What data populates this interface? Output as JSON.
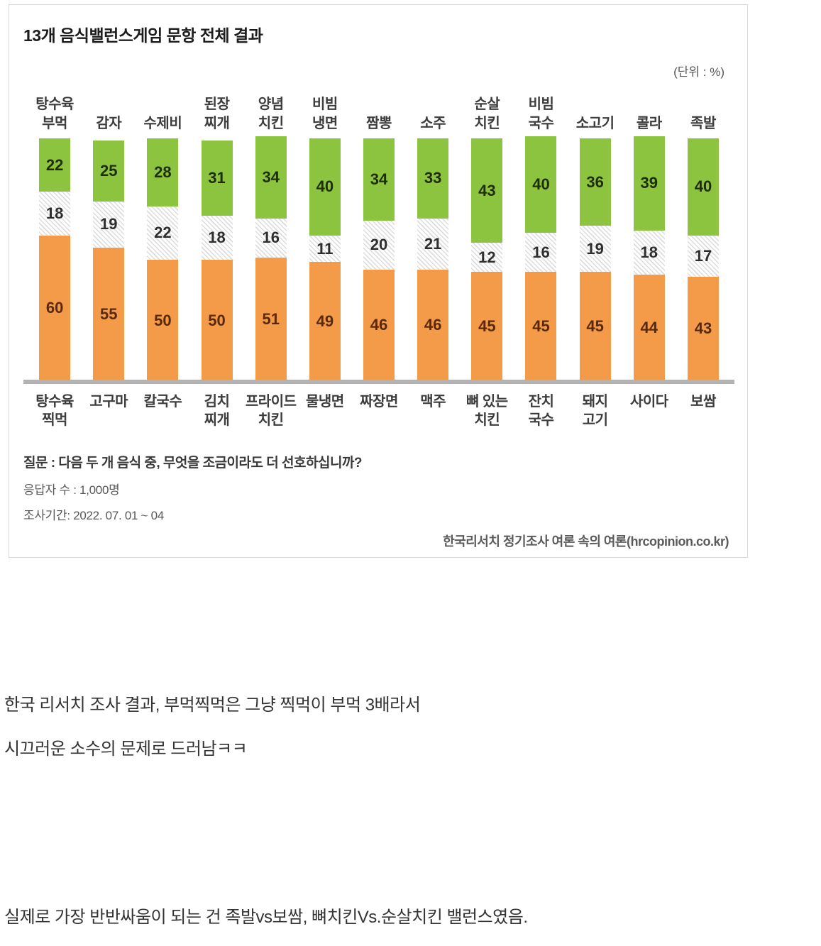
{
  "chart": {
    "title": "13개 음식밸런스게임 문항 전체 결과",
    "unit_label": "(단위 : %)",
    "question": "질문 :  다음 두 개 음식 중, 무엇을 조금이라도 더 선호하십니까?",
    "respondents": "응답자 수 : 1,000명",
    "period": "조사기간: 2022. 07. 01 ~ 04",
    "source": "한국리서치 정기조사 여론 속의 여론(hrcopinion.co.kr)",
    "colors": {
      "top_segment": "#8cc43f",
      "middle_hatch_line": "#dcdcdc",
      "bottom_segment": "#f49b49",
      "axis": "#b3b3b3"
    }
  },
  "chart_data": {
    "type": "bar",
    "stacked": true,
    "orientation": "vertical",
    "unit": "%",
    "ylim": [
      0,
      100
    ],
    "grid": false,
    "top_categories": [
      "탕수육 부먹",
      "감자",
      "수제비",
      "된장 찌개",
      "양념 치킨",
      "비빔 냉면",
      "짬뽕",
      "소주",
      "순살 치킨",
      "비빔 국수",
      "소고기",
      "콜라",
      "족발"
    ],
    "bottom_categories": [
      "탕수육 찍먹",
      "고구마",
      "칼국수",
      "김치 찌개",
      "프라이드 치킨",
      "물냉면",
      "짜장면",
      "맥주",
      "뼈 있는 치킨",
      "잔치 국수",
      "돼지 고기",
      "사이다",
      "보쌈"
    ],
    "top_label_lines": [
      [
        "탕수육",
        "부먹"
      ],
      [
        "감자"
      ],
      [
        "수제비"
      ],
      [
        "된장",
        "찌개"
      ],
      [
        "양념",
        "치킨"
      ],
      [
        "비빔",
        "냉면"
      ],
      [
        "짬뽕"
      ],
      [
        "소주"
      ],
      [
        "순살",
        "치킨"
      ],
      [
        "비빔",
        "국수"
      ],
      [
        "소고기"
      ],
      [
        "콜라"
      ],
      [
        "족발"
      ]
    ],
    "bottom_label_lines": [
      [
        "탕수육",
        "찍먹"
      ],
      [
        "고구마"
      ],
      [
        "칼국수"
      ],
      [
        "김치",
        "찌개"
      ],
      [
        "프라이드",
        "치킨"
      ],
      [
        "물냉면"
      ],
      [
        "짜장면"
      ],
      [
        "맥주"
      ],
      [
        "뼈 있는",
        "치킨"
      ],
      [
        "잔치",
        "국수"
      ],
      [
        "돼지",
        "고기"
      ],
      [
        "사이다"
      ],
      [
        "보쌈"
      ]
    ],
    "series": [
      {
        "name": "top-option-preferred",
        "values": [
          22,
          25,
          28,
          31,
          34,
          40,
          34,
          33,
          43,
          40,
          36,
          39,
          40
        ]
      },
      {
        "name": "neutral-middle",
        "values": [
          18,
          19,
          22,
          18,
          16,
          11,
          20,
          21,
          12,
          16,
          19,
          18,
          17
        ]
      },
      {
        "name": "bottom-option-preferred",
        "values": [
          60,
          55,
          50,
          50,
          51,
          49,
          46,
          46,
          45,
          45,
          45,
          44,
          43
        ]
      }
    ]
  },
  "post": {
    "body_line_1": "한국 리서치 조사 결과, 부먹찍먹은 그냥 찍먹이 부먹 3배라서",
    "body_line_2": "시끄러운 소수의 문제로 드러남ㅋㅋ",
    "body_line_3": "실제로 가장 반반싸움이 되는 건 족발vs보쌈, 뼈치킨Vs.순살치킨 밸런스였음."
  }
}
